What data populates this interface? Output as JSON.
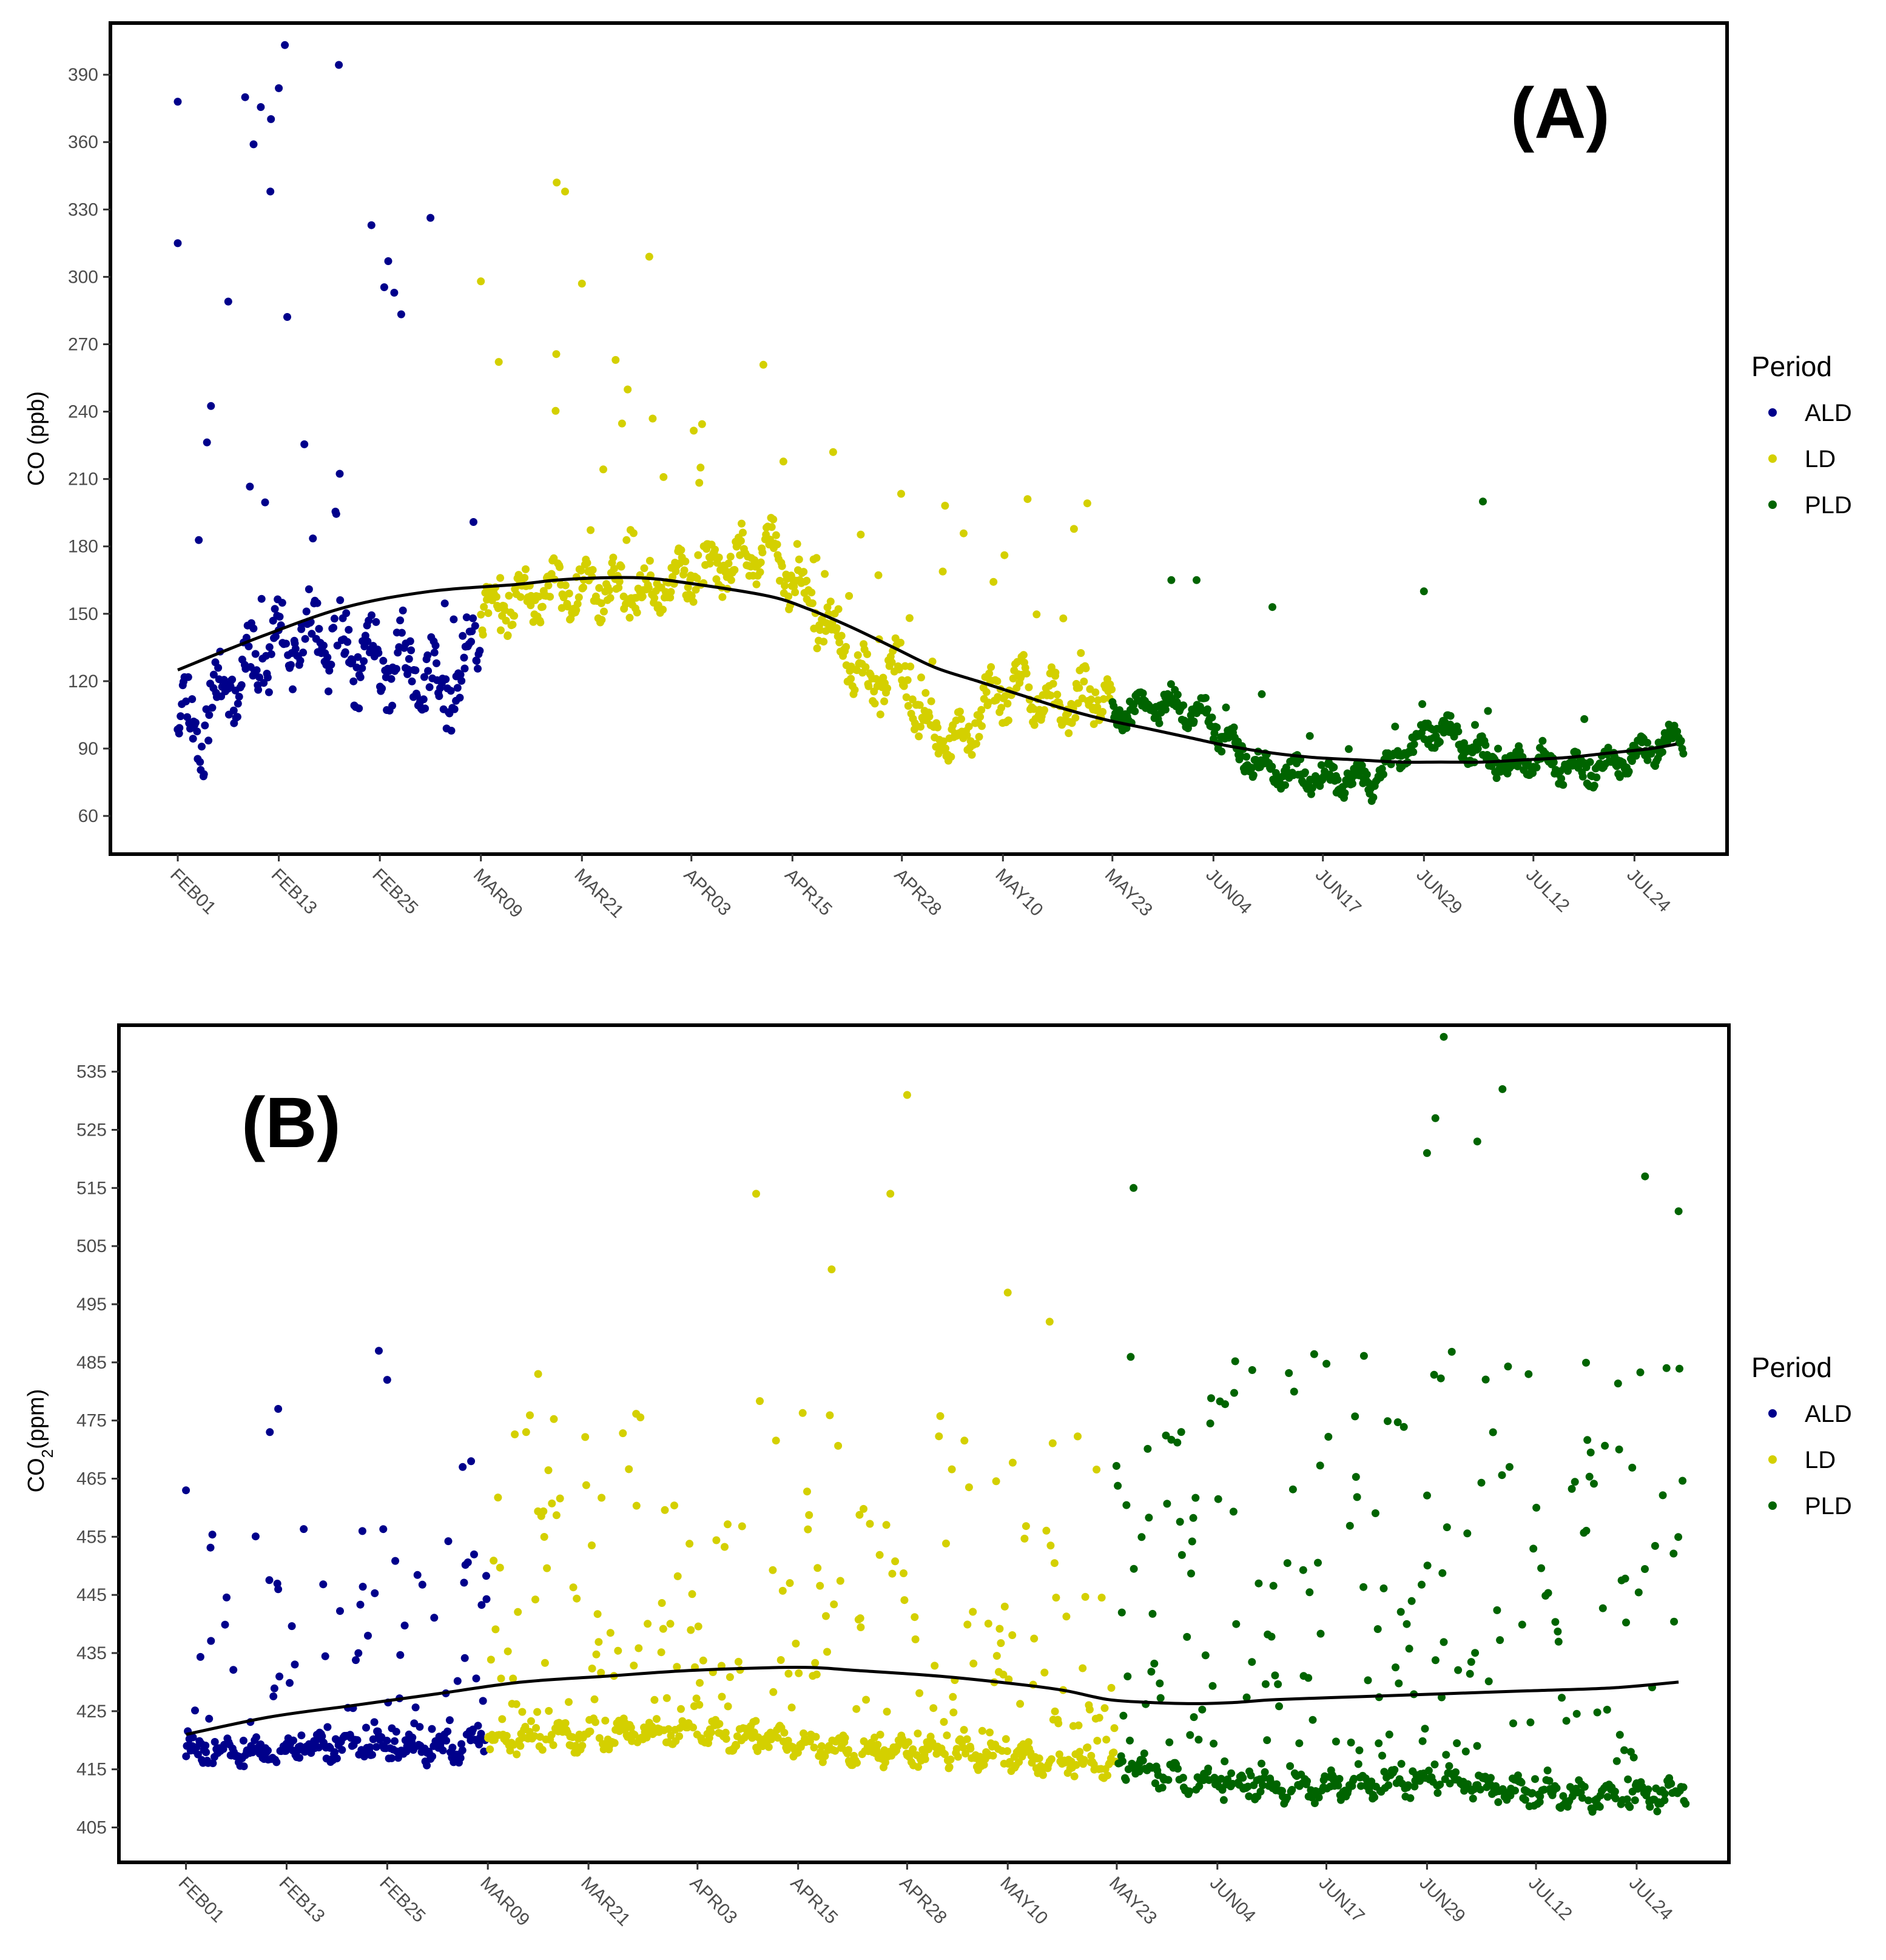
{
  "chart_data": [
    {
      "type": "scatter",
      "panel_label": "(A)",
      "title": "",
      "xlabel": "",
      "ylabel": "CO (ppb)",
      "x_tick_labels": [
        "FEB01",
        "FEB13",
        "FEB25",
        "MAR09",
        "MAR21",
        "APR03",
        "APR15",
        "APR28",
        "MAY10",
        "MAY23",
        "JUN04",
        "JUN17",
        "JUN29",
        "JUL12",
        "JUL24"
      ],
      "x_tick_day_index": [
        0,
        12,
        24,
        36,
        48,
        61,
        73,
        86,
        98,
        111,
        123,
        136,
        148,
        161,
        173
      ],
      "xlim": [
        -8,
        184
      ],
      "ylim": [
        43,
        413
      ],
      "y_ticks": [
        60,
        90,
        120,
        150,
        180,
        210,
        240,
        270,
        300,
        330,
        360,
        390
      ],
      "legend_title": "Period",
      "legend_position": "right",
      "grid": false,
      "series": [
        {
          "name": "ALD",
          "color": "#00008b",
          "day_range": [
            0,
            35
          ],
          "base_anchors": [
            [
              0,
              105
            ],
            [
              3,
              100
            ],
            [
              6,
              120
            ],
            [
              10,
              130
            ],
            [
              14,
              140
            ],
            [
              18,
              135
            ],
            [
              22,
              130
            ],
            [
              26,
              128
            ],
            [
              30,
              120
            ],
            [
              33,
              115
            ],
            [
              35,
              135
            ]
          ],
          "spread": 25,
          "spike_rate": 0.12,
          "spike_max": 270,
          "outliers": [
            [
              0,
              378
            ],
            [
              0,
              315
            ],
            [
              8,
              380
            ],
            [
              12,
              384
            ],
            [
              9,
              359
            ],
            [
              11,
              338
            ],
            [
              6,
              289
            ],
            [
              23,
              323
            ],
            [
              25,
              307
            ]
          ]
        },
        {
          "name": "LD",
          "color": "#d4d000",
          "day_range": [
            36,
            110
          ],
          "base_anchors": [
            [
              36,
              150
            ],
            [
              45,
              160
            ],
            [
              50,
              162
            ],
            [
              55,
              158
            ],
            [
              60,
              165
            ],
            [
              65,
              172
            ],
            [
              70,
              180
            ],
            [
              74,
              160
            ],
            [
              78,
              140
            ],
            [
              82,
              118
            ],
            [
              86,
              125
            ],
            [
              88,
              105
            ],
            [
              92,
              90
            ],
            [
              96,
              110
            ],
            [
              100,
              118
            ],
            [
              104,
              110
            ],
            [
              108,
              112
            ],
            [
              110,
              115
            ]
          ],
          "spread": 16,
          "spike_rate": 0.08,
          "spike_max": 110,
          "outliers": [
            [
              45,
              342
            ],
            [
              46,
              338
            ],
            [
              48,
              297
            ],
            [
              56,
              309
            ],
            [
              36,
              298
            ],
            [
              52,
              263
            ]
          ]
        },
        {
          "name": "PLD",
          "color": "#006400",
          "day_range": [
            111,
            178
          ],
          "base_anchors": [
            [
              111,
              105
            ],
            [
              118,
              110
            ],
            [
              122,
              105
            ],
            [
              126,
              88
            ],
            [
              130,
              80
            ],
            [
              134,
              78
            ],
            [
              138,
              76
            ],
            [
              142,
              75
            ],
            [
              146,
              90
            ],
            [
              150,
              100
            ],
            [
              154,
              88
            ],
            [
              158,
              82
            ],
            [
              162,
              86
            ],
            [
              166,
              80
            ],
            [
              170,
              82
            ],
            [
              174,
              88
            ],
            [
              178,
              95
            ]
          ],
          "spread": 9,
          "spike_rate": 0.05,
          "spike_max": 40,
          "outliers": [
            [
              148,
              160
            ],
            [
              155,
              200
            ],
            [
              130,
              153
            ],
            [
              121,
              165
            ],
            [
              118,
              165
            ]
          ]
        }
      ],
      "trend_line": {
        "color": "#000000",
        "x": [
          0,
          10,
          20,
          30,
          40,
          45,
          50,
          55,
          60,
          70,
          75,
          80,
          85,
          90,
          95,
          100,
          105,
          110,
          115,
          120,
          125,
          130,
          135,
          140,
          145,
          150,
          155,
          160,
          165,
          170,
          175,
          178
        ],
        "y": [
          125,
          140,
          153,
          160,
          163,
          165,
          166,
          166,
          164,
          158,
          152,
          144,
          135,
          126,
          120,
          114,
          108,
          103,
          99,
          95,
          91,
          88,
          86,
          85,
          84,
          84,
          84,
          85,
          86,
          88,
          90,
          92
        ]
      }
    },
    {
      "type": "scatter",
      "panel_label": "(B)",
      "title": "",
      "xlabel": "",
      "ylabel_prefix": "CO",
      "ylabel_subscript": "2",
      "ylabel_suffix": "(ppm)",
      "x_tick_labels": [
        "FEB01",
        "FEB13",
        "FEB25",
        "MAR09",
        "MAR21",
        "APR03",
        "APR15",
        "APR28",
        "MAY10",
        "MAY23",
        "JUN04",
        "JUN17",
        "JUN29",
        "JUL12",
        "JUL24"
      ],
      "x_tick_day_index": [
        0,
        12,
        24,
        36,
        48,
        61,
        73,
        86,
        98,
        111,
        123,
        136,
        148,
        161,
        173
      ],
      "xlim": [
        -8,
        184
      ],
      "ylim": [
        399,
        543
      ],
      "y_ticks": [
        405,
        415,
        425,
        435,
        445,
        455,
        465,
        475,
        485,
        495,
        505,
        515,
        525,
        535
      ],
      "legend_title": "Period",
      "legend_position": "right",
      "grid": false,
      "series": [
        {
          "name": "ALD",
          "color": "#00008b",
          "day_range": [
            0,
            35
          ],
          "base_anchors": [
            [
              0,
              418
            ],
            [
              10,
              418
            ],
            [
              20,
              419
            ],
            [
              30,
              418
            ],
            [
              35,
              420
            ]
          ],
          "spread": 3,
          "spike_rate": 0.3,
          "spike_max": 40,
          "outliers": [
            [
              0,
              463
            ],
            [
              11,
              477
            ],
            [
              10,
              473
            ],
            [
              23,
              487
            ],
            [
              24,
              482
            ],
            [
              34,
              468
            ],
            [
              33,
              467
            ]
          ]
        },
        {
          "name": "LD",
          "color": "#d4d000",
          "day_range": [
            36,
            110
          ],
          "base_anchors": [
            [
              36,
              420
            ],
            [
              50,
              421
            ],
            [
              60,
              421
            ],
            [
              70,
              420
            ],
            [
              80,
              418
            ],
            [
              90,
              418
            ],
            [
              100,
              417
            ],
            [
              110,
              416
            ]
          ],
          "spread": 3,
          "spike_rate": 0.35,
          "spike_max": 60,
          "outliers": [
            [
              86,
              531
            ],
            [
              68,
              514
            ],
            [
              84,
              514
            ],
            [
              77,
              501
            ],
            [
              42,
              483
            ],
            [
              98,
              497
            ],
            [
              103,
              492
            ]
          ]
        },
        {
          "name": "PLD",
          "color": "#006400",
          "day_range": [
            111,
            178
          ],
          "base_anchors": [
            [
              111,
              416
            ],
            [
              120,
              413
            ],
            [
              130,
              412
            ],
            [
              140,
              412
            ],
            [
              150,
              413
            ],
            [
              160,
              411
            ],
            [
              170,
              410
            ],
            [
              178,
              411
            ]
          ],
          "spread": 3,
          "spike_rate": 0.4,
          "spike_max": 75,
          "outliers": [
            [
              150,
              541
            ],
            [
              157,
              532
            ],
            [
              149,
              527
            ],
            [
              154,
              523
            ],
            [
              174,
              517
            ],
            [
              113,
              515
            ],
            [
              148,
              521
            ],
            [
              178,
              511
            ]
          ]
        }
      ],
      "trend_line": {
        "color": "#000000",
        "x": [
          0,
          10,
          20,
          30,
          40,
          50,
          60,
          70,
          75,
          80,
          90,
          100,
          105,
          110,
          115,
          120,
          125,
          130,
          140,
          150,
          160,
          170,
          178
        ],
        "y": [
          421,
          424,
          426,
          428,
          430,
          431,
          432,
          432.5,
          432.5,
          432,
          431,
          429.5,
          428.5,
          427,
          426.5,
          426.3,
          426.5,
          427,
          427.5,
          428,
          428.5,
          429,
          430
        ]
      }
    }
  ]
}
